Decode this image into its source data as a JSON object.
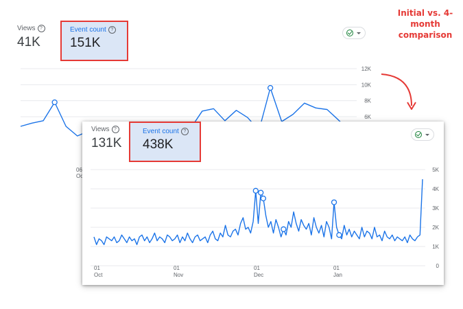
{
  "annotation": {
    "text": "Initial vs. 4-month comparison",
    "color": "#e53935"
  },
  "back_panel": {
    "views_label": "Views",
    "views_value": "41K",
    "event_label": "Event count",
    "event_value": "151K",
    "y_ticks": [
      "12K",
      "10K",
      "8K",
      "6K"
    ],
    "x_tick_day": "06",
    "x_tick_month": "Oct",
    "line_color": "#1a73e8"
  },
  "front_panel": {
    "views_label": "Views",
    "views_value": "131K",
    "event_label": "Event count",
    "event_value": "438K",
    "y_ticks": [
      "5K",
      "4K",
      "3K",
      "2K",
      "1K",
      "0"
    ],
    "x_ticks": [
      {
        "day": "01",
        "month": "Oct"
      },
      {
        "day": "01",
        "month": "Nov"
      },
      {
        "day": "01",
        "month": "Dec"
      },
      {
        "day": "01",
        "month": "Jan"
      }
    ],
    "line_color": "#1a73e8"
  },
  "chart_data": [
    {
      "type": "line",
      "series": [
        {
          "name": "Event count",
          "values": [
            4.8,
            5.2,
            5.5,
            7.8,
            4.8,
            3.6,
            4.2,
            4.9,
            3.8,
            4.5,
            5.0,
            4.4,
            3.9,
            4.7,
            5.3,
            4.6,
            6.7,
            7.0,
            5.5,
            6.8,
            5.9,
            4.3,
            9.6,
            5.4,
            6.3,
            7.7,
            7.1,
            6.9,
            5.6,
            4.2
          ]
        }
      ],
      "ylim": [
        0,
        12000
      ],
      "y_unit": "K",
      "markers_at": [
        3,
        22
      ]
    },
    {
      "type": "line",
      "series": [
        {
          "name": "Event count",
          "values": [
            1.5,
            1.1,
            1.4,
            1.3,
            1.1,
            1.5,
            1.4,
            1.3,
            1.5,
            1.2,
            1.3,
            1.6,
            1.4,
            1.2,
            1.5,
            1.3,
            1.4,
            1.1,
            1.5,
            1.6,
            1.3,
            1.5,
            1.2,
            1.4,
            1.7,
            1.3,
            1.5,
            1.4,
            1.2,
            1.6,
            1.5,
            1.3,
            1.4,
            1.6,
            1.2,
            1.5,
            1.3,
            1.7,
            1.4,
            1.2,
            1.5,
            1.6,
            1.3,
            1.4,
            1.5,
            1.2,
            1.6,
            1.8,
            1.4,
            1.3,
            1.7,
            1.5,
            2.1,
            1.6,
            1.5,
            1.8,
            1.9,
            1.6,
            2.2,
            2.5,
            1.9,
            2.0,
            1.7,
            2.3,
            3.9,
            2.2,
            3.8,
            3.5,
            2.6,
            2.0,
            2.3,
            1.7,
            2.4,
            2.0,
            1.5,
            1.9,
            1.6,
            2.3,
            2.0,
            2.8,
            2.2,
            1.8,
            2.4,
            2.1,
            1.9,
            2.2,
            1.6,
            2.5,
            2.0,
            1.7,
            2.1,
            1.5,
            2.3,
            2.0,
            1.4,
            3.3,
            2.0,
            1.6,
            1.4,
            2.1,
            1.6,
            1.9,
            1.5,
            1.8,
            1.6,
            1.4,
            2.0,
            1.5,
            1.8,
            1.7,
            1.4,
            2.0,
            1.5,
            1.6,
            1.3,
            1.8,
            1.5,
            1.4,
            1.6,
            1.3,
            1.5,
            1.4,
            1.3,
            1.5,
            1.2,
            1.6,
            1.4,
            1.3,
            1.5,
            1.6,
            4.5
          ]
        }
      ],
      "ylim": [
        0,
        5000
      ],
      "y_unit": "K",
      "markers_at": [
        64,
        66,
        67,
        75,
        95,
        97
      ]
    }
  ]
}
